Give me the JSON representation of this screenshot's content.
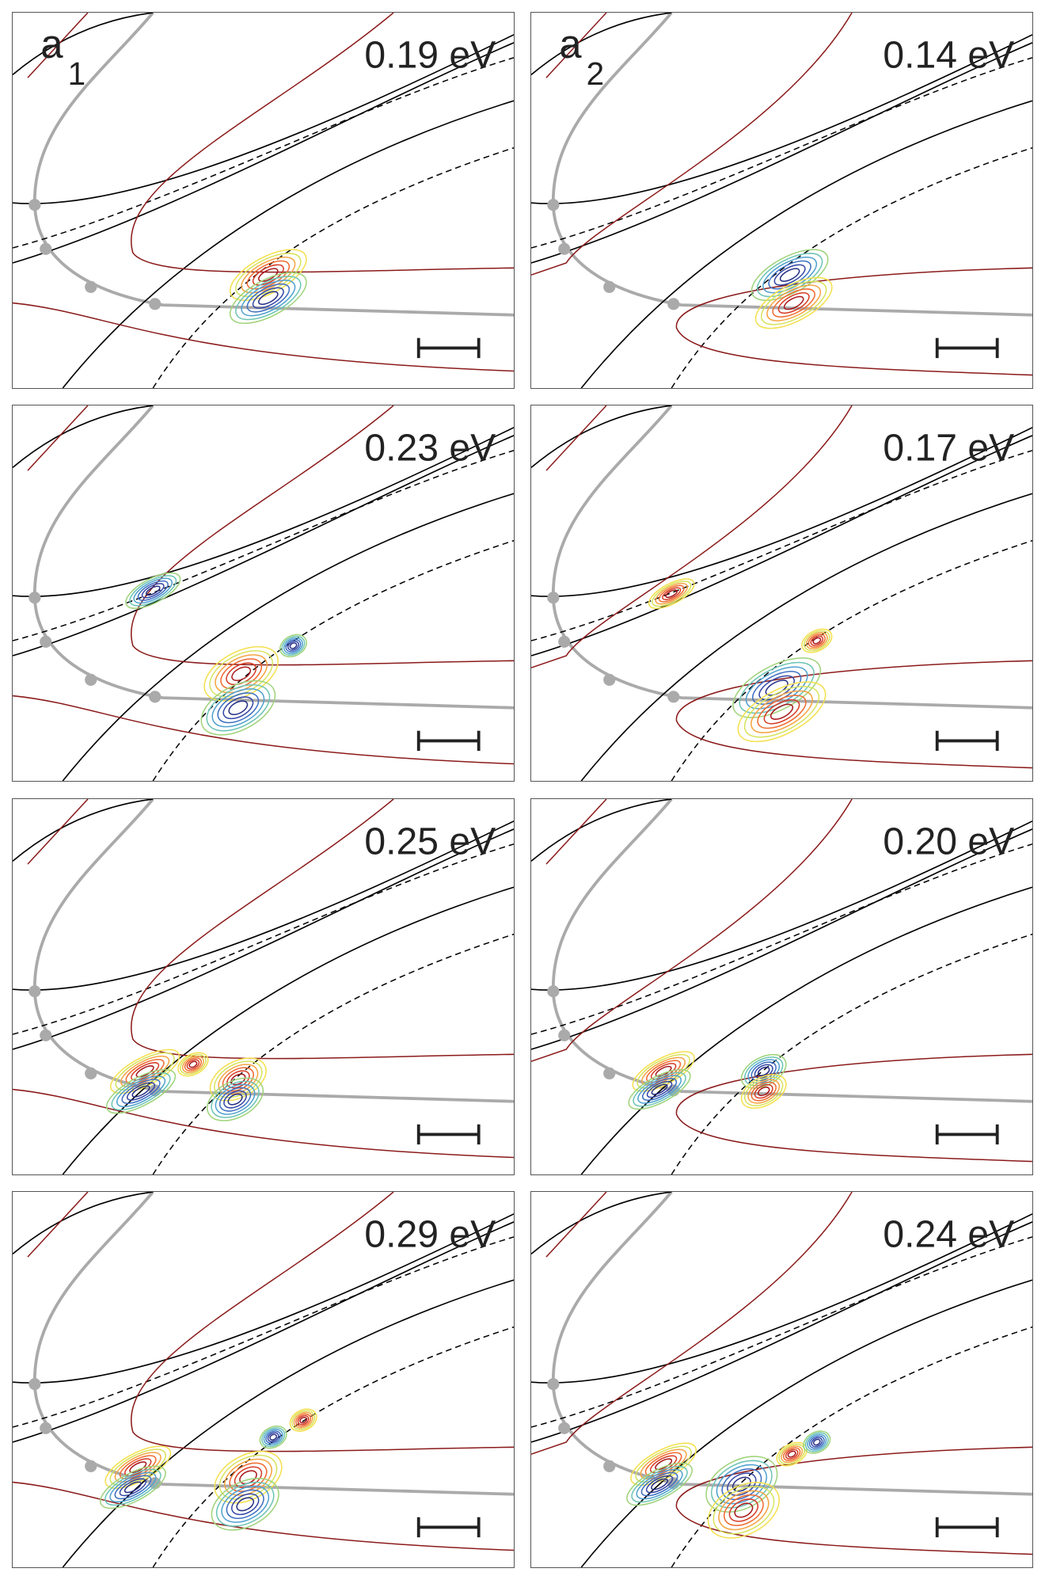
{
  "panels": [
    {
      "label": "a",
      "subscript": "1",
      "energy": "0.19 eV"
    },
    {
      "label": "a",
      "subscript": "2",
      "energy": "0.14 eV"
    },
    {
      "energy": "0.23 eV"
    },
    {
      "energy": "0.17 eV"
    },
    {
      "energy": "0.25 eV"
    },
    {
      "energy": "0.20 eV"
    },
    {
      "energy": "0.29 eV"
    },
    {
      "energy": "0.24 eV"
    }
  ]
}
